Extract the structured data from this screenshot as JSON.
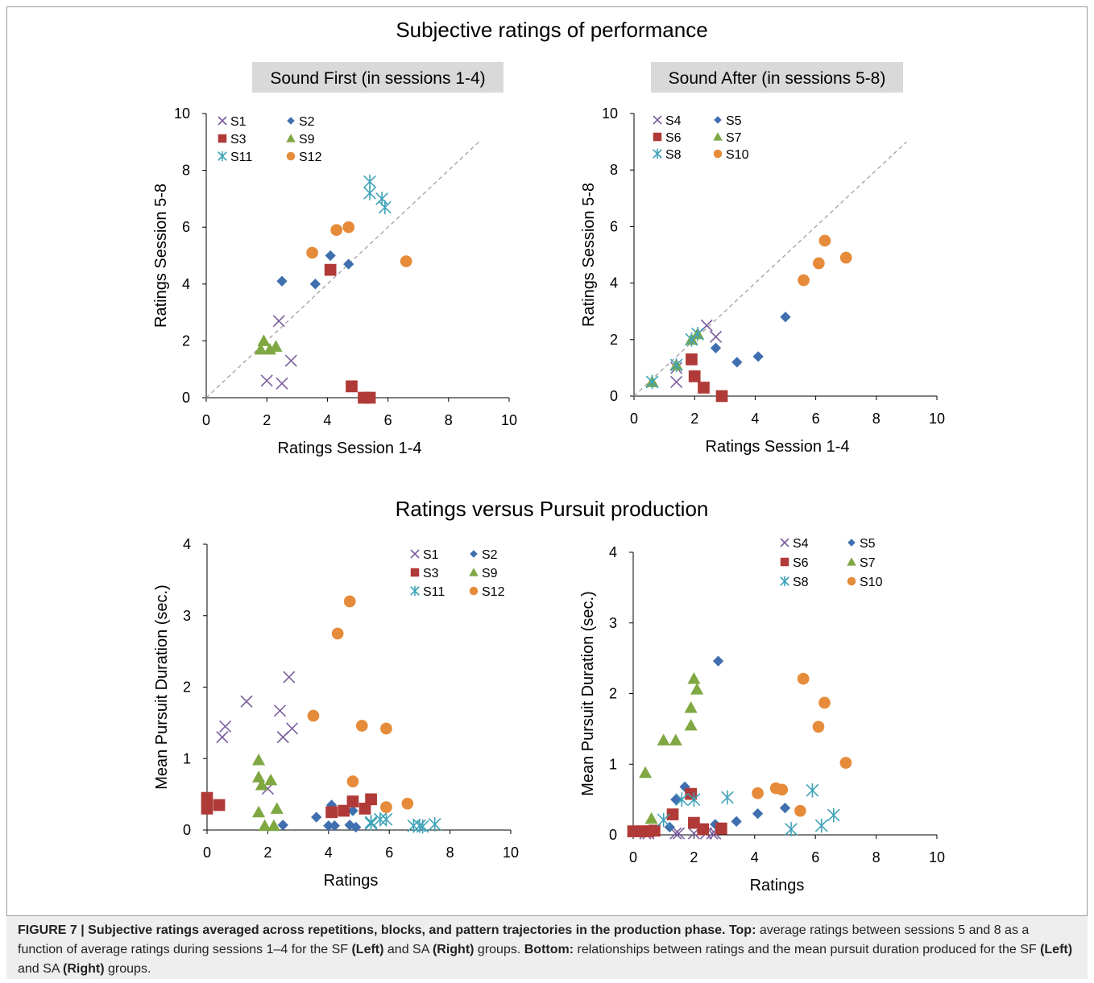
{
  "figure": {
    "top_title": "Subjective ratings of performance",
    "bottom_title": "Ratings versus Pursuit production"
  },
  "caption": {
    "label": "FIGURE 7 | Subjective ratings averaged across repetitions, blocks, and pattern trajectories in the production phase.",
    "top_label": "Top:",
    "top_text_1": " average ratings between sessions 5 and 8 as a function of average ratings during sessions 1–4 for the SF ",
    "left_1": "(Left)",
    "and_1": " and SA ",
    "right_1": "(Right)",
    "groups_1": " groups. ",
    "bottom_label": "Bottom:",
    "bottom_text": " relationships between ratings and the mean pursuit duration produced for the SF ",
    "left_2": "(Left)",
    "and_2": " and SA ",
    "right_2": "(Right)",
    "groups_2": " groups."
  },
  "colors": {
    "purple": "#7c5f9e",
    "blue": "#3f6faf",
    "red": "#b03a37",
    "green": "#7fa843",
    "teal": "#3fa3b8",
    "orange": "#e58b3a",
    "panel_grey": "#d9d9d9",
    "diagonal": "#a6a6a6"
  },
  "chart_data": [
    {
      "id": "top-left",
      "type": "scatter",
      "panel_label": "Sound First (in sessions 1-4)",
      "xlabel": "Ratings Session 1-4",
      "ylabel": "Ratings Session 5-8",
      "xlim": [
        0,
        10
      ],
      "ylim": [
        0,
        10
      ],
      "xticks": [
        0,
        2,
        4,
        6,
        8,
        10
      ],
      "yticks": [
        0,
        2,
        4,
        6,
        8,
        10
      ],
      "diagonal": [
        [
          0,
          0
        ],
        [
          9,
          9
        ]
      ],
      "series": [
        {
          "name": "S1",
          "marker": "x",
          "color": "purple",
          "points": [
            [
              2.4,
              2.7
            ],
            [
              2.0,
              0.6
            ],
            [
              2.5,
              0.5
            ],
            [
              2.8,
              1.3
            ]
          ]
        },
        {
          "name": "S2",
          "marker": "diamond",
          "color": "blue",
          "points": [
            [
              2.5,
              4.1
            ],
            [
              3.6,
              4.0
            ],
            [
              4.1,
              5.0
            ],
            [
              4.7,
              4.7
            ]
          ]
        },
        {
          "name": "S3",
          "marker": "square",
          "color": "red",
          "points": [
            [
              4.1,
              4.5
            ],
            [
              4.8,
              0.4
            ],
            [
              5.2,
              0.0
            ],
            [
              5.4,
              0.0
            ]
          ]
        },
        {
          "name": "S9",
          "marker": "triangle",
          "color": "green",
          "points": [
            [
              1.8,
              1.7
            ],
            [
              1.9,
              2.0
            ],
            [
              2.1,
              1.7
            ],
            [
              2.3,
              1.8
            ]
          ]
        },
        {
          "name": "S11",
          "marker": "star",
          "color": "teal",
          "points": [
            [
              5.4,
              7.6
            ],
            [
              5.4,
              7.2
            ],
            [
              5.8,
              7.0
            ],
            [
              5.9,
              6.7
            ]
          ]
        },
        {
          "name": "S12",
          "marker": "circle",
          "color": "orange",
          "points": [
            [
              3.5,
              5.1
            ],
            [
              4.3,
              5.9
            ],
            [
              4.7,
              6.0
            ],
            [
              6.6,
              4.8
            ]
          ]
        }
      ],
      "legend_position": "top-left"
    },
    {
      "id": "top-right",
      "type": "scatter",
      "panel_label": "Sound After (in sessions 5-8)",
      "xlabel": "Ratings Session 1-4",
      "ylabel": "Ratings Session 5-8",
      "xlim": [
        0,
        10
      ],
      "ylim": [
        0,
        10
      ],
      "xticks": [
        0,
        2,
        4,
        6,
        8,
        10
      ],
      "yticks": [
        0,
        2,
        4,
        6,
        8,
        10
      ],
      "diagonal": [
        [
          0,
          0
        ],
        [
          9,
          9
        ]
      ],
      "series": [
        {
          "name": "S4",
          "marker": "x",
          "color": "purple",
          "points": [
            [
              1.4,
              0.5
            ],
            [
              1.4,
              1.0
            ],
            [
              2.4,
              2.5
            ],
            [
              2.7,
              2.1
            ]
          ]
        },
        {
          "name": "S5",
          "marker": "diamond",
          "color": "blue",
          "points": [
            [
              2.7,
              1.7
            ],
            [
              3.4,
              1.2
            ],
            [
              4.1,
              1.4
            ],
            [
              5.0,
              2.8
            ]
          ]
        },
        {
          "name": "S6",
          "marker": "square",
          "color": "red",
          "points": [
            [
              1.9,
              1.3
            ],
            [
              2.0,
              0.7
            ],
            [
              2.3,
              0.3
            ],
            [
              2.9,
              0.0
            ]
          ]
        },
        {
          "name": "S7",
          "marker": "triangle",
          "color": "green",
          "points": [
            [
              0.6,
              0.5
            ],
            [
              1.4,
              1.1
            ],
            [
              1.9,
              2.0
            ],
            [
              2.1,
              2.2
            ]
          ]
        },
        {
          "name": "S8",
          "marker": "star",
          "color": "teal",
          "points": [
            [
              0.6,
              0.5
            ],
            [
              1.4,
              1.1
            ],
            [
              1.9,
              2.0
            ],
            [
              2.1,
              2.2
            ]
          ]
        },
        {
          "name": "S10",
          "marker": "circle",
          "color": "orange",
          "points": [
            [
              5.6,
              4.1
            ],
            [
              6.1,
              4.7
            ],
            [
              6.3,
              5.5
            ],
            [
              7.0,
              4.9
            ]
          ]
        }
      ],
      "legend_position": "top-left"
    },
    {
      "id": "bottom-left",
      "type": "scatter",
      "xlabel": "Ratings",
      "ylabel": "Mean Pursuit Duration (sec.)",
      "xlim": [
        0,
        10
      ],
      "ylim": [
        0,
        4
      ],
      "xticks": [
        0,
        2,
        4,
        6,
        8,
        10
      ],
      "yticks": [
        0,
        1,
        2,
        3,
        4
      ],
      "series": [
        {
          "name": "S1",
          "marker": "x",
          "color": "purple",
          "points": [
            [
              0.5,
              1.3
            ],
            [
              0.6,
              1.45
            ],
            [
              1.3,
              1.8
            ],
            [
              2.4,
              1.67
            ],
            [
              2.5,
              1.3
            ],
            [
              2.7,
              2.14
            ],
            [
              2.8,
              1.42
            ],
            [
              2.0,
              0.58
            ]
          ]
        },
        {
          "name": "S2",
          "marker": "diamond",
          "color": "blue",
          "points": [
            [
              2.5,
              0.07
            ],
            [
              3.6,
              0.18
            ],
            [
              4.0,
              0.06
            ],
            [
              4.1,
              0.35
            ],
            [
              4.2,
              0.06
            ],
            [
              4.7,
              0.07
            ],
            [
              4.9,
              0.04
            ],
            [
              4.8,
              0.27
            ]
          ]
        },
        {
          "name": "S3",
          "marker": "square",
          "color": "red",
          "points": [
            [
              0.0,
              0.45
            ],
            [
              0.0,
              0.3
            ],
            [
              0.4,
              0.35
            ],
            [
              4.1,
              0.25
            ],
            [
              4.5,
              0.27
            ],
            [
              4.8,
              0.4
            ],
            [
              5.2,
              0.3
            ],
            [
              5.4,
              0.43
            ]
          ]
        },
        {
          "name": "S9",
          "marker": "triangle",
          "color": "green",
          "points": [
            [
              1.7,
              0.98
            ],
            [
              1.7,
              0.74
            ],
            [
              1.8,
              0.63
            ],
            [
              2.1,
              0.7
            ],
            [
              1.7,
              0.25
            ],
            [
              1.9,
              0.06
            ],
            [
              2.2,
              0.06
            ],
            [
              2.3,
              0.3
            ]
          ]
        },
        {
          "name": "S11",
          "marker": "star",
          "color": "teal",
          "points": [
            [
              5.4,
              0.11
            ],
            [
              5.7,
              0.15
            ],
            [
              5.9,
              0.15
            ],
            [
              6.8,
              0.06
            ],
            [
              7.0,
              0.06
            ],
            [
              7.1,
              0.05
            ],
            [
              7.5,
              0.08
            ],
            [
              5.4,
              0.09
            ]
          ]
        },
        {
          "name": "S12",
          "marker": "circle",
          "color": "orange",
          "points": [
            [
              3.5,
              1.6
            ],
            [
              4.3,
              2.75
            ],
            [
              4.7,
              3.2
            ],
            [
              5.1,
              1.46
            ],
            [
              5.9,
              1.42
            ],
            [
              4.8,
              0.68
            ],
            [
              5.9,
              0.32
            ],
            [
              6.6,
              0.37
            ]
          ]
        }
      ],
      "legend_position": "top-right"
    },
    {
      "id": "bottom-right",
      "type": "scatter",
      "xlabel": "Ratings",
      "ylabel": "Mean Pursuit Duration (sec.)",
      "xlim": [
        0,
        10
      ],
      "ylim": [
        0,
        4
      ],
      "xticks": [
        0,
        2,
        4,
        6,
        8,
        10
      ],
      "yticks": [
        0,
        1,
        2,
        3,
        4
      ],
      "series": [
        {
          "name": "S4",
          "marker": "x",
          "color": "purple",
          "points": [
            [
              0.4,
              0.02
            ],
            [
              0.5,
              0.02
            ],
            [
              1.4,
              0.02
            ],
            [
              1.5,
              0.02
            ],
            [
              2.0,
              0.02
            ],
            [
              2.4,
              0.02
            ],
            [
              2.6,
              0.02
            ],
            [
              2.7,
              0.02
            ]
          ]
        },
        {
          "name": "S5",
          "marker": "diamond",
          "color": "blue",
          "points": [
            [
              1.2,
              0.11
            ],
            [
              1.4,
              0.5
            ],
            [
              1.7,
              0.68
            ],
            [
              2.7,
              0.15
            ],
            [
              3.4,
              0.19
            ],
            [
              4.1,
              0.3
            ],
            [
              5.0,
              0.38
            ],
            [
              2.8,
              2.46
            ]
          ]
        },
        {
          "name": "S6",
          "marker": "square",
          "color": "red",
          "points": [
            [
              0.0,
              0.05
            ],
            [
              0.3,
              0.05
            ],
            [
              0.5,
              0.05
            ],
            [
              0.7,
              0.06
            ],
            [
              1.3,
              0.29
            ],
            [
              1.9,
              0.58
            ],
            [
              2.0,
              0.17
            ],
            [
              2.3,
              0.08
            ],
            [
              2.9,
              0.09
            ]
          ]
        },
        {
          "name": "S7",
          "marker": "triangle",
          "color": "green",
          "points": [
            [
              0.4,
              0.88
            ],
            [
              0.6,
              0.23
            ],
            [
              1.0,
              1.34
            ],
            [
              1.4,
              1.34
            ],
            [
              1.9,
              1.8
            ],
            [
              1.9,
              1.55
            ],
            [
              2.0,
              2.21
            ],
            [
              2.1,
              2.06
            ]
          ]
        },
        {
          "name": "S8",
          "marker": "star",
          "color": "teal",
          "points": [
            [
              1.0,
              0.21
            ],
            [
              1.6,
              0.5
            ],
            [
              2.0,
              0.5
            ],
            [
              3.1,
              0.53
            ],
            [
              5.2,
              0.08
            ],
            [
              5.9,
              0.63
            ],
            [
              6.2,
              0.13
            ],
            [
              6.6,
              0.28
            ]
          ]
        },
        {
          "name": "S10",
          "marker": "circle",
          "color": "orange",
          "points": [
            [
              4.1,
              0.59
            ],
            [
              4.7,
              0.66
            ],
            [
              4.9,
              0.64
            ],
            [
              5.5,
              0.34
            ],
            [
              5.6,
              2.21
            ],
            [
              6.1,
              1.53
            ],
            [
              6.3,
              1.87
            ],
            [
              7.0,
              1.02
            ]
          ]
        }
      ],
      "legend_position": "top-right"
    }
  ]
}
